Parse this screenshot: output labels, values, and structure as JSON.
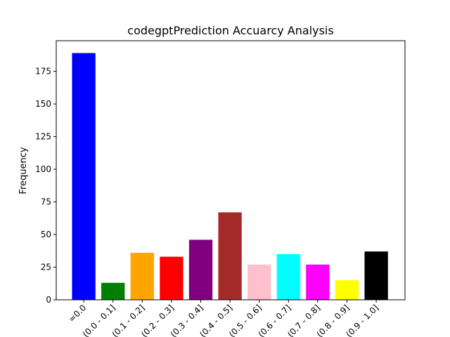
{
  "chart_data": {
    "type": "bar",
    "title": "codegptPrediction Accuarcy Analysis",
    "xlabel": "",
    "ylabel": "Frequency",
    "categories": [
      "=0.0",
      "(0.0 - 0.1]",
      "(0.1 - 0.2]",
      "(0.2 - 0.3]",
      "(0.3 - 0.4]",
      "(0.4 - 0.5]",
      "(0.5 - 0.6]",
      "(0.6 - 0.7]",
      "(0.7 - 0.8]",
      "(0.8 - 0.9]",
      "(0.9 - 1.0]"
    ],
    "values": [
      189,
      13,
      36,
      33,
      46,
      67,
      27,
      35,
      27,
      15,
      37
    ],
    "colors": [
      "#0000ff",
      "#008000",
      "#ffa500",
      "#ff0000",
      "#800080",
      "#a52a2a",
      "#ffc0cb",
      "#00ffff",
      "#ff00ff",
      "#ffff00",
      "#000000"
    ],
    "ylim": [
      0,
      198.45
    ],
    "yticks": [
      0,
      25,
      50,
      75,
      100,
      125,
      150,
      175
    ],
    "grid": false,
    "legend": "none"
  }
}
